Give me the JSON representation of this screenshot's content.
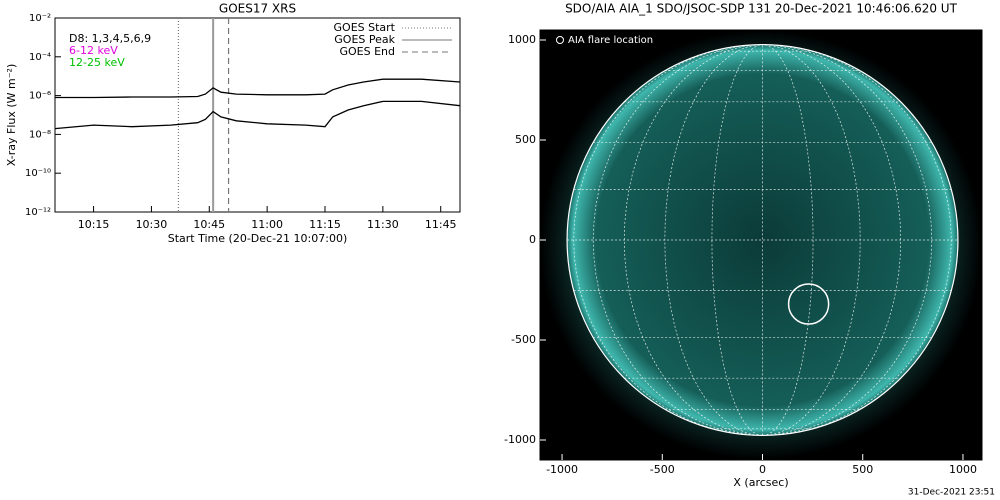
{
  "chart_data": [
    {
      "type": "line",
      "title": "GOES17 XRS",
      "ylabel": "X-ray Flux (W m⁻²)",
      "xlabel": "Start Time (20-Dec-21 10:07:00)",
      "ylog": true,
      "xlim": [
        "10:05",
        "11:50"
      ],
      "xticks": [
        "10:15",
        "10:30",
        "10:45",
        "11:00",
        "11:15",
        "11:30",
        "11:45"
      ],
      "ylim": [
        1e-12,
        0.01
      ],
      "yticks": [
        {
          "value": 1e-12,
          "label": "10⁻¹²"
        },
        {
          "value": 1e-10,
          "label": "10⁻¹⁰"
        },
        {
          "value": 1e-08,
          "label": "10⁻⁸"
        },
        {
          "value": 1e-06,
          "label": "10⁻⁶"
        },
        {
          "value": 0.0001,
          "label": "10⁻⁴"
        },
        {
          "value": 0.01,
          "label": "10⁻²"
        }
      ],
      "x": [
        "10:05",
        "10:15",
        "10:25",
        "10:35",
        "10:42",
        "10:44",
        "10:46",
        "10:48",
        "10:52",
        "11:00",
        "11:10",
        "11:15",
        "11:17",
        "11:21",
        "11:25",
        "11:30",
        "11:40",
        "11:50"
      ],
      "series": [
        {
          "color": "#000000",
          "values": [
            8e-07,
            8e-07,
            8.5e-07,
            8.5e-07,
            9e-07,
            1.2e-06,
            2.5e-06,
            1.5e-06,
            1.2e-06,
            1.1e-06,
            1.1e-06,
            1.2e-06,
            2e-06,
            3.5e-06,
            5e-06,
            7e-06,
            7e-06,
            5e-06
          ]
        },
        {
          "color": "#000000",
          "values": [
            2e-08,
            3e-08,
            2.5e-08,
            3e-08,
            4e-08,
            6e-08,
            1.5e-07,
            8e-08,
            5e-08,
            3.5e-08,
            3e-08,
            2.5e-08,
            8e-08,
            1.8e-07,
            3e-07,
            5e-07,
            5e-07,
            3e-07
          ]
        }
      ],
      "annotations": [
        {
          "text": "D8: 1,3,4,5,6,9",
          "color": "#000000"
        },
        {
          "text": "6-12 keV",
          "color": "#e000e0"
        },
        {
          "text": "12-25 keV",
          "color": "#00c000"
        }
      ],
      "events": [
        {
          "name": "GOES Start",
          "time": "10:37",
          "style": "dotted"
        },
        {
          "name": "GOES Peak",
          "time": "10:46",
          "style": "solid"
        },
        {
          "name": "GOES End",
          "time": "10:50",
          "style": "dashed"
        }
      ]
    },
    {
      "type": "image",
      "title": "SDO/AIA AIA_1 SDO/JSOC-SDP 131 20-Dec-2021 10:46:06.620 UT",
      "xlabel": "X (arcsec)",
      "xlim": [
        -1110,
        1095
      ],
      "ylim": [
        -1100,
        1050
      ],
      "xticks": [
        -1000,
        -500,
        0,
        500,
        1000
      ],
      "yticks": [
        -1000,
        -500,
        0,
        500,
        1000
      ],
      "solar_radius": 975,
      "legend": "AIA flare location",
      "flare": {
        "x": 230,
        "y": -320,
        "r": 100
      },
      "footer": "31-Dec-2021 23:51"
    }
  ]
}
